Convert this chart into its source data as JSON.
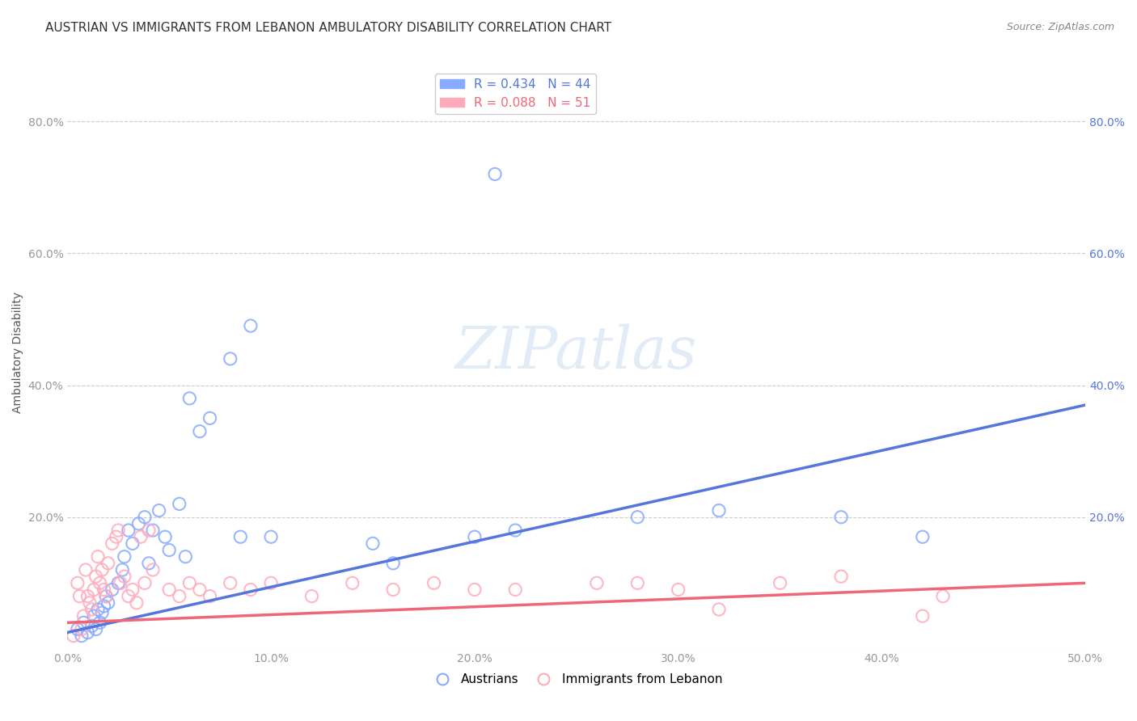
{
  "title": "AUSTRIAN VS IMMIGRANTS FROM LEBANON AMBULATORY DISABILITY CORRELATION CHART",
  "source": "Source: ZipAtlas.com",
  "xlabel": "",
  "ylabel": "Ambulatory Disability",
  "xlim": [
    0.0,
    0.5
  ],
  "ylim": [
    0.0,
    0.9
  ],
  "xticks": [
    0.0,
    0.1,
    0.2,
    0.3,
    0.4,
    0.5
  ],
  "yticks": [
    0.0,
    0.2,
    0.4,
    0.6,
    0.8
  ],
  "xticklabels": [
    "0.0%",
    "10.0%",
    "20.0%",
    "30.0%",
    "40.0%",
    "50.0%"
  ],
  "yticklabels": [
    "",
    "20.0%",
    "40.0%",
    "60.0%",
    "80.0%"
  ],
  "legend_entries": [
    {
      "label": "R = 0.434   N = 44",
      "color": "#5577dd"
    },
    {
      "label": "R = 0.088   N = 51",
      "color": "#ee6677"
    }
  ],
  "austrians_x": [
    0.005,
    0.007,
    0.008,
    0.01,
    0.012,
    0.013,
    0.014,
    0.015,
    0.016,
    0.017,
    0.018,
    0.019,
    0.02,
    0.022,
    0.025,
    0.027,
    0.028,
    0.03,
    0.032,
    0.035,
    0.038,
    0.04,
    0.042,
    0.045,
    0.048,
    0.05,
    0.055,
    0.058,
    0.06,
    0.065,
    0.07,
    0.08,
    0.085,
    0.09,
    0.1,
    0.15,
    0.16,
    0.2,
    0.21,
    0.22,
    0.28,
    0.32,
    0.38,
    0.42
  ],
  "austrians_y": [
    0.03,
    0.02,
    0.04,
    0.025,
    0.035,
    0.05,
    0.03,
    0.06,
    0.04,
    0.055,
    0.065,
    0.08,
    0.07,
    0.09,
    0.1,
    0.12,
    0.14,
    0.18,
    0.16,
    0.19,
    0.2,
    0.13,
    0.18,
    0.21,
    0.17,
    0.15,
    0.22,
    0.14,
    0.38,
    0.33,
    0.35,
    0.44,
    0.17,
    0.49,
    0.17,
    0.16,
    0.13,
    0.17,
    0.72,
    0.18,
    0.2,
    0.21,
    0.2,
    0.17
  ],
  "lebanon_x": [
    0.003,
    0.005,
    0.006,
    0.007,
    0.008,
    0.009,
    0.01,
    0.011,
    0.012,
    0.013,
    0.014,
    0.015,
    0.016,
    0.017,
    0.018,
    0.019,
    0.02,
    0.022,
    0.024,
    0.025,
    0.026,
    0.028,
    0.03,
    0.032,
    0.034,
    0.036,
    0.038,
    0.04,
    0.042,
    0.05,
    0.055,
    0.06,
    0.065,
    0.07,
    0.08,
    0.09,
    0.1,
    0.12,
    0.14,
    0.16,
    0.18,
    0.2,
    0.22,
    0.26,
    0.28,
    0.3,
    0.32,
    0.35,
    0.38,
    0.42,
    0.43
  ],
  "lebanon_y": [
    0.02,
    0.1,
    0.08,
    0.03,
    0.05,
    0.12,
    0.08,
    0.07,
    0.06,
    0.09,
    0.11,
    0.14,
    0.1,
    0.12,
    0.09,
    0.08,
    0.13,
    0.16,
    0.17,
    0.18,
    0.1,
    0.11,
    0.08,
    0.09,
    0.07,
    0.17,
    0.1,
    0.18,
    0.12,
    0.09,
    0.08,
    0.1,
    0.09,
    0.08,
    0.1,
    0.09,
    0.1,
    0.08,
    0.1,
    0.09,
    0.1,
    0.09,
    0.09,
    0.1,
    0.1,
    0.09,
    0.06,
    0.1,
    0.11,
    0.05,
    0.08
  ],
  "blue_line_x": [
    0.0,
    0.5
  ],
  "blue_line_y": [
    0.025,
    0.37
  ],
  "pink_line_x": [
    0.0,
    0.5
  ],
  "pink_line_y": [
    0.04,
    0.1
  ],
  "blue_color": "#5577dd",
  "pink_color": "#ee6677",
  "blue_scatter_color": "#88aaff",
  "pink_scatter_color": "#ffaabb",
  "background_color": "#ffffff",
  "watermark": "ZIPatlas",
  "title_fontsize": 11,
  "axis_label_fontsize": 10,
  "tick_fontsize": 10
}
